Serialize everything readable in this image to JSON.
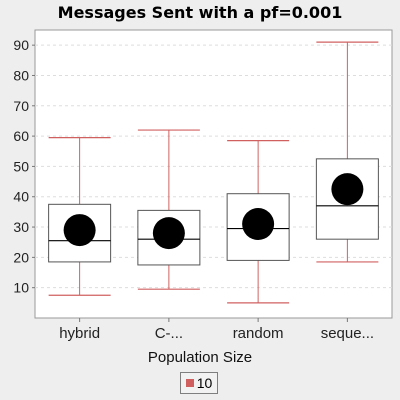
{
  "chart_data": {
    "type": "box",
    "title": "Messages Sent  with a pf=0.001",
    "xlabel": "Population Size",
    "ylabel": "",
    "ylim": [
      0,
      95
    ],
    "yticks": [
      10,
      20,
      30,
      40,
      50,
      60,
      70,
      80,
      90
    ],
    "grid": true,
    "legend_position": "bottom-center",
    "categories": [
      "hybrid",
      "C-...",
      "random",
      "seque..."
    ],
    "series": [
      {
        "name": "10",
        "color": "#d06060",
        "boxes": [
          {
            "whisker_low": 7.5,
            "q1": 18.5,
            "median": 25.5,
            "q3": 37.5,
            "whisker_high": 59.5,
            "mean": 29
          },
          {
            "whisker_low": 9.5,
            "q1": 17.5,
            "median": 26.0,
            "q3": 35.5,
            "whisker_high": 62.0,
            "mean": 28
          },
          {
            "whisker_low": 5.0,
            "q1": 19.0,
            "median": 29.5,
            "q3": 41.0,
            "whisker_high": 58.5,
            "mean": 31
          },
          {
            "whisker_low": 18.5,
            "q1": 26.0,
            "median": 37.0,
            "q3": 52.5,
            "whisker_high": 91.0,
            "mean": 42.5
          }
        ]
      }
    ]
  },
  "colors": {
    "plot_background": "#ffffff",
    "whisker": "#d06060",
    "box_border": "#555555",
    "mean_marker": "#000000",
    "gridline": "#dddddd"
  }
}
